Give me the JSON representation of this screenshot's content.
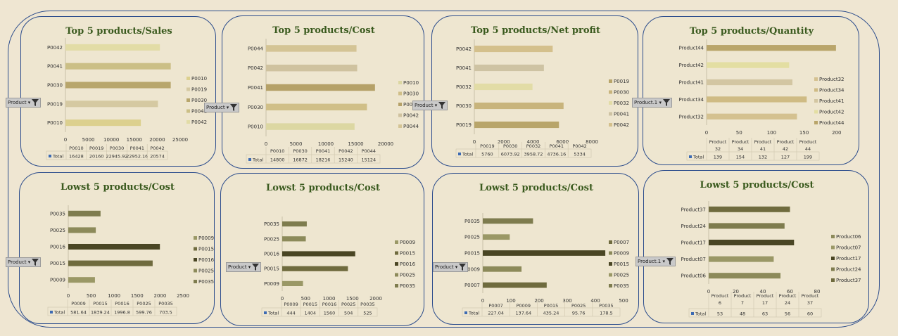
{
  "chart_data": [
    {
      "type": "bar",
      "title": "Top 5 products/Sales",
      "categories": [
        "P0042",
        "P0041",
        "P0030",
        "P0019",
        "P0010"
      ],
      "values": [
        20574,
        22952.16,
        22945.92,
        20160,
        16428
      ],
      "colors": [
        "#e2dca6",
        "#cbbf86",
        "#b8a66c",
        "#d5c9a2",
        "#dcd08e"
      ],
      "legend": [
        "P0010",
        "P0019",
        "P0030",
        "P0041",
        "P0042"
      ],
      "legend_colors": [
        "#dcd08e",
        "#d5c9a2",
        "#b8a66c",
        "#cbbf86",
        "#e2dca6"
      ],
      "xticks": [
        "0",
        "5000",
        "10000",
        "15000",
        "20000",
        "25000"
      ],
      "xmax": 25000,
      "table_headers": [
        "P0010",
        "P0019",
        "P0030",
        "P0041",
        "P0042"
      ],
      "table_values": [
        "16428",
        "20160",
        "22945.92",
        "22952.16",
        "20574"
      ],
      "total_label": "Total",
      "filter_label": "Product"
    },
    {
      "type": "bar",
      "title": "Top 5 products/Cost",
      "categories": [
        "P0044",
        "P0042",
        "P0041",
        "P0030",
        "P0010"
      ],
      "values": [
        15124,
        15240,
        18216,
        16872,
        14800
      ],
      "colors": [
        "#d4c495",
        "#cfc29f",
        "#b5a168",
        "#d0bf88",
        "#dcd7a2"
      ],
      "legend": [
        "P0010",
        "P0030",
        "P0041",
        "P0042",
        "P0044"
      ],
      "legend_colors": [
        "#dcd7a2",
        "#d0bf88",
        "#b5a168",
        "#cfc29f",
        "#d4c495"
      ],
      "xticks": [
        "0",
        "5000",
        "10000",
        "15000",
        "20000"
      ],
      "xmax": 20000,
      "table_headers": [
        "P0010",
        "P0030",
        "P0041",
        "P0042",
        "P0044"
      ],
      "table_values": [
        "14800",
        "16872",
        "18216",
        "15240",
        "15124"
      ],
      "total_label": "Total",
      "filter_label": "Product"
    },
    {
      "type": "bar",
      "title": "Top 5 products/Net profit",
      "categories": [
        "P0042",
        "P0041",
        "P0032",
        "P0030",
        "P0019"
      ],
      "values": [
        5334,
        4736.16,
        3958.72,
        6073.92,
        5760
      ],
      "colors": [
        "#d4c08c",
        "#cec3a3",
        "#e2dca6",
        "#c8b47c",
        "#b8a56a"
      ],
      "legend": [
        "P0019",
        "P0030",
        "P0032",
        "P0041",
        "P0042"
      ],
      "legend_colors": [
        "#b8a56a",
        "#c8b47c",
        "#e2dca6",
        "#cec3a3",
        "#d4c08c"
      ],
      "xticks": [
        "0",
        "2000",
        "4000",
        "6000",
        "8000"
      ],
      "xmax": 8000,
      "table_headers": [
        "P0019",
        "P0030",
        "P0032",
        "P0041",
        "P0042"
      ],
      "table_values": [
        "5760",
        "6073.92",
        "3958.72",
        "4736.16",
        "5334"
      ],
      "total_label": "Total",
      "filter_label": "Product"
    },
    {
      "type": "bar",
      "title": "Top 5 products/Quantity",
      "categories": [
        "Product44",
        "Product42",
        "Product41",
        "Product34",
        "Product32"
      ],
      "values": [
        199,
        127,
        132,
        154,
        139
      ],
      "colors": [
        "#b9a56a",
        "#e3dea2",
        "#d3c6a2",
        "#cfbb84",
        "#d4c190"
      ],
      "legend": [
        "Product32",
        "Product34",
        "Product41",
        "Product42",
        "Product44"
      ],
      "legend_colors": [
        "#d4c190",
        "#cfbb84",
        "#d3c6a2",
        "#e3dea2",
        "#b9a56a"
      ],
      "xticks": [
        "0",
        "50",
        "100",
        "150",
        "200",
        "250"
      ],
      "xmax": 250,
      "table_headers": [
        "Product 32",
        "Product 34",
        "Product 41",
        "Product 42",
        "Product 44"
      ],
      "table_values": [
        "139",
        "154",
        "132",
        "127",
        "199"
      ],
      "total_label": "Total",
      "filter_label": "Product.1"
    },
    {
      "type": "bar",
      "title": "Lowst 5 products/Cost",
      "categories": [
        "P0035",
        "P0025",
        "P0016",
        "P0015",
        "P0009"
      ],
      "values": [
        703.5,
        599.76,
        1996.8,
        1839.24,
        581.64
      ],
      "colors": [
        "#7e7c4e",
        "#8c8a5a",
        "#4a4624",
        "#6f6b3e",
        "#9a9866"
      ],
      "legend": [
        "P0009",
        "P0015",
        "P0016",
        "P0025",
        "P0035"
      ],
      "legend_colors": [
        "#9a9866",
        "#6f6b3e",
        "#4a4624",
        "#8c8a5a",
        "#7e7c4e"
      ],
      "xticks": [
        "0",
        "500",
        "1000",
        "1500",
        "2000",
        "2500"
      ],
      "xmax": 2500,
      "table_headers": [
        "P0009",
        "P0015",
        "P0016",
        "P0025",
        "P0035"
      ],
      "table_values": [
        "581.64",
        "1839.24",
        "1996.8",
        "599.76",
        "703.5"
      ],
      "total_label": "Total",
      "filter_label": "Product"
    },
    {
      "type": "bar",
      "title": "Lowst 5 products/Cost",
      "categories": [
        "P0035",
        "P0025",
        "P0016",
        "P0015",
        "P0009"
      ],
      "values": [
        525,
        504,
        1560,
        1404,
        444
      ],
      "colors": [
        "#7e7c4e",
        "#8c8a5a",
        "#4a4624",
        "#6f6b3e",
        "#9a9866"
      ],
      "legend": [
        "P0009",
        "P0015",
        "P0016",
        "P0025",
        "P0035"
      ],
      "legend_colors": [
        "#9a9866",
        "#6f6b3e",
        "#4a4624",
        "#8c8a5a",
        "#7e7c4e"
      ],
      "xticks": [
        "0",
        "500",
        "1000",
        "1500",
        "2000"
      ],
      "xmax": 2000,
      "table_headers": [
        "P0009",
        "P0015",
        "P0016",
        "P0025",
        "P0035"
      ],
      "table_values": [
        "444",
        "1404",
        "1560",
        "504",
        "525"
      ],
      "total_label": "Total",
      "filter_label": "Product"
    },
    {
      "type": "bar",
      "title": "Lowst 5 products/Cost",
      "categories": [
        "P0035",
        "P0025",
        "P0015",
        "P0009",
        "P0007"
      ],
      "values": [
        178.5,
        95.76,
        435.24,
        137.64,
        227.04
      ],
      "colors": [
        "#7e7c4e",
        "#9a9866",
        "#4a4624",
        "#8c8a5a",
        "#6f6b3e"
      ],
      "legend": [
        "P0007",
        "P0009",
        "P0015",
        "P0025",
        "P0035"
      ],
      "legend_colors": [
        "#6f6b3e",
        "#8c8a5a",
        "#4a4624",
        "#9a9866",
        "#7e7c4e"
      ],
      "xticks": [
        "0",
        "100",
        "200",
        "300",
        "400",
        "500"
      ],
      "xmax": 500,
      "table_headers": [
        "P0007",
        "P0009",
        "P0015",
        "P0025",
        "P0035"
      ],
      "table_values": [
        "227.04",
        "137.64",
        "435.24",
        "95.76",
        "178.5"
      ],
      "total_label": "Total",
      "filter_label": "Product"
    },
    {
      "type": "bar",
      "title": "Lowst 5 products/Cost",
      "categories": [
        "Product37",
        "Product24",
        "Product17",
        "Product07",
        "Product06"
      ],
      "values": [
        60,
        56,
        63,
        48,
        53
      ],
      "colors": [
        "#6f6b3e",
        "#7e7c4e",
        "#4a4624",
        "#9a9866",
        "#8c8a5a"
      ],
      "legend": [
        "Product06",
        "Product07",
        "Product17",
        "Product24",
        "Product37"
      ],
      "legend_colors": [
        "#8c8a5a",
        "#9a9866",
        "#4a4624",
        "#7e7c4e",
        "#6f6b3e"
      ],
      "xticks": [
        "0",
        "20",
        "40",
        "60",
        "80"
      ],
      "xmax": 80,
      "table_headers": [
        "Product 6",
        "Product 7",
        "Product 17",
        "Product 24",
        "Product 37"
      ],
      "table_values": [
        "53",
        "48",
        "63",
        "56",
        "60"
      ],
      "total_label": "Total",
      "filter_label": "Product.1"
    }
  ],
  "colors": {
    "frame": "#2b4c8c",
    "title": "#3a5a1e",
    "background": "#efe6d2",
    "total_marker": "#3d6bb3"
  }
}
